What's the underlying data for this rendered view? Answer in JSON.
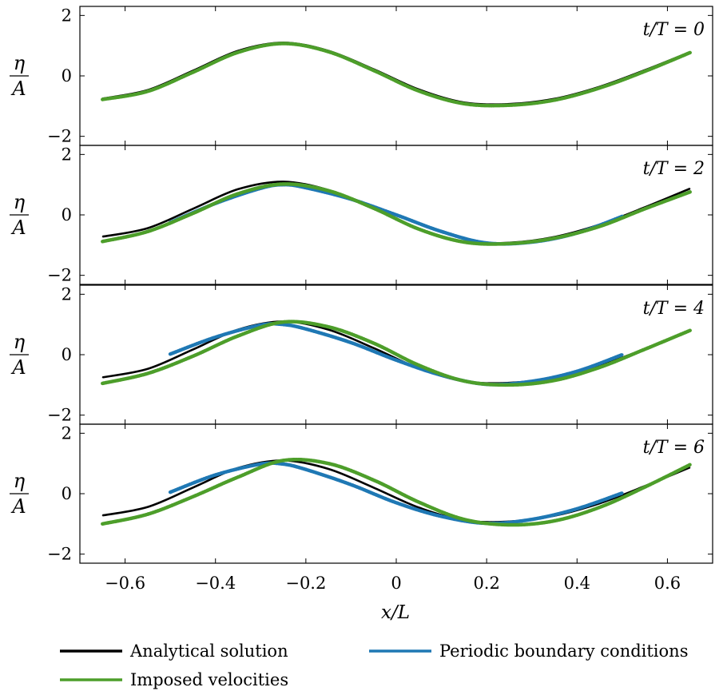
{
  "chart_data": {
    "type": "line",
    "xlabel": "x/L",
    "ylabel": {
      "numerator": "η",
      "denominator": "A"
    },
    "xlim": [
      -0.7,
      0.7
    ],
    "ylim": [
      -2.3,
      2.3
    ],
    "x_ticks": [
      -0.6,
      -0.4,
      -0.2,
      0,
      0.2,
      0.4,
      0.6
    ],
    "x_tick_labels": [
      "−0.6",
      "−0.4",
      "−0.2",
      "0",
      "0.2",
      "0.4",
      "0.6"
    ],
    "y_ticks": [
      -2,
      0,
      2
    ],
    "y_tick_labels": [
      "−2",
      "0",
      "2"
    ],
    "grid": false,
    "legend_position": "bottom",
    "legend": [
      {
        "label": "Analytical solution",
        "color": "#000000"
      },
      {
        "label": "Periodic boundary conditions",
        "color": "#1f78b4"
      },
      {
        "label": "Imposed velocities",
        "color": "#4d9e2a"
      }
    ],
    "panels": [
      {
        "annotation": "t/T = 0",
        "series": [
          {
            "name": "Analytical solution",
            "color": "#000000",
            "x": [
              -0.65,
              -0.55,
              -0.45,
              -0.35,
              -0.25,
              -0.15,
              -0.05,
              0.05,
              0.15,
              0.25,
              0.35,
              0.45,
              0.55,
              0.65
            ],
            "y": [
              -0.75,
              -0.47,
              0.17,
              0.83,
              1.1,
              0.83,
              0.22,
              -0.45,
              -0.88,
              -0.93,
              -0.76,
              -0.36,
              0.19,
              0.79
            ]
          },
          {
            "name": "Imposed velocities",
            "color": "#4d9e2a",
            "x": [
              -0.65,
              -0.55,
              -0.45,
              -0.35,
              -0.25,
              -0.15,
              -0.05,
              0.05,
              0.15,
              0.25,
              0.35,
              0.45,
              0.55,
              0.65
            ],
            "y": [
              -0.78,
              -0.51,
              0.12,
              0.78,
              1.07,
              0.8,
              0.18,
              -0.5,
              -0.92,
              -0.97,
              -0.8,
              -0.4,
              0.15,
              0.77
            ]
          }
        ]
      },
      {
        "annotation": "t/T = 2",
        "series": [
          {
            "name": "Analytical solution",
            "color": "#000000",
            "x": [
              -0.65,
              -0.55,
              -0.45,
              -0.35,
              -0.25,
              -0.15,
              -0.05,
              0.05,
              0.15,
              0.25,
              0.35,
              0.45,
              0.55,
              0.65
            ],
            "y": [
              -0.72,
              -0.44,
              0.2,
              0.85,
              1.1,
              0.82,
              0.2,
              -0.46,
              -0.88,
              -0.92,
              -0.73,
              -0.32,
              0.25,
              0.87
            ]
          },
          {
            "name": "Periodic boundary conditions",
            "color": "#1f78b4",
            "x": [
              -0.5,
              -0.4,
              -0.3,
              -0.25,
              -0.2,
              -0.1,
              0,
              0.1,
              0.2,
              0.3,
              0.4,
              0.5
            ],
            "y": [
              -0.25,
              0.38,
              0.88,
              1.0,
              0.9,
              0.52,
              0.0,
              -0.55,
              -0.93,
              -0.9,
              -0.6,
              -0.05
            ]
          },
          {
            "name": "Imposed velocities",
            "color": "#4d9e2a",
            "x": [
              -0.65,
              -0.55,
              -0.45,
              -0.35,
              -0.25,
              -0.15,
              -0.05,
              0.05,
              0.15,
              0.25,
              0.35,
              0.45,
              0.55,
              0.65
            ],
            "y": [
              -0.88,
              -0.55,
              0.05,
              0.7,
              1.02,
              0.8,
              0.22,
              -0.47,
              -0.9,
              -0.95,
              -0.77,
              -0.38,
              0.2,
              0.76
            ]
          }
        ]
      },
      {
        "annotation": "t/T = 4",
        "series": [
          {
            "name": "Analytical solution",
            "color": "#000000",
            "x": [
              -0.65,
              -0.55,
              -0.45,
              -0.35,
              -0.25,
              -0.15,
              -0.05,
              0.05,
              0.15,
              0.25,
              0.35,
              0.45,
              0.55,
              0.65
            ],
            "y": [
              -0.75,
              -0.47,
              0.17,
              0.83,
              1.1,
              0.83,
              0.22,
              -0.45,
              -0.88,
              -0.93,
              -0.76,
              -0.36,
              0.19,
              0.79
            ]
          },
          {
            "name": "Periodic boundary conditions",
            "color": "#1f78b4",
            "x": [
              -0.5,
              -0.4,
              -0.3,
              -0.25,
              -0.2,
              -0.1,
              0,
              0.1,
              0.2,
              0.3,
              0.4,
              0.5
            ],
            "y": [
              0.02,
              0.58,
              0.98,
              1.0,
              0.85,
              0.4,
              -0.18,
              -0.68,
              -0.98,
              -0.88,
              -0.55,
              0.0
            ]
          },
          {
            "name": "Imposed velocities",
            "color": "#4d9e2a",
            "x": [
              -0.65,
              -0.55,
              -0.45,
              -0.35,
              -0.25,
              -0.15,
              -0.05,
              0.05,
              0.15,
              0.25,
              0.35,
              0.45,
              0.55,
              0.65
            ],
            "y": [
              -0.95,
              -0.62,
              -0.05,
              0.62,
              1.08,
              0.92,
              0.38,
              -0.35,
              -0.87,
              -1.0,
              -0.85,
              -0.42,
              0.18,
              0.8
            ]
          }
        ]
      },
      {
        "annotation": "t/T = 6",
        "series": [
          {
            "name": "Analytical solution",
            "color": "#000000",
            "x": [
              -0.65,
              -0.55,
              -0.45,
              -0.35,
              -0.25,
              -0.15,
              -0.05,
              0.05,
              0.15,
              0.25,
              0.35,
              0.45,
              0.55,
              0.65
            ],
            "y": [
              -0.72,
              -0.44,
              0.2,
              0.85,
              1.1,
              0.82,
              0.2,
              -0.46,
              -0.88,
              -0.92,
              -0.73,
              -0.32,
              0.25,
              0.87
            ]
          },
          {
            "name": "Periodic boundary conditions",
            "color": "#1f78b4",
            "x": [
              -0.5,
              -0.4,
              -0.3,
              -0.25,
              -0.2,
              -0.1,
              0,
              0.1,
              0.2,
              0.3,
              0.4,
              0.5
            ],
            "y": [
              0.05,
              0.62,
              0.98,
              0.98,
              0.8,
              0.3,
              -0.3,
              -0.75,
              -0.98,
              -0.85,
              -0.5,
              0.02
            ]
          },
          {
            "name": "Imposed velocities",
            "color": "#4d9e2a",
            "x": [
              -0.65,
              -0.55,
              -0.45,
              -0.35,
              -0.25,
              -0.15,
              -0.05,
              0.05,
              0.15,
              0.25,
              0.35,
              0.45,
              0.55,
              0.65
            ],
            "y": [
              -1.0,
              -0.68,
              -0.1,
              0.55,
              1.1,
              1.0,
              0.45,
              -0.28,
              -0.85,
              -1.03,
              -0.9,
              -0.45,
              0.22,
              0.96
            ]
          }
        ]
      }
    ]
  }
}
